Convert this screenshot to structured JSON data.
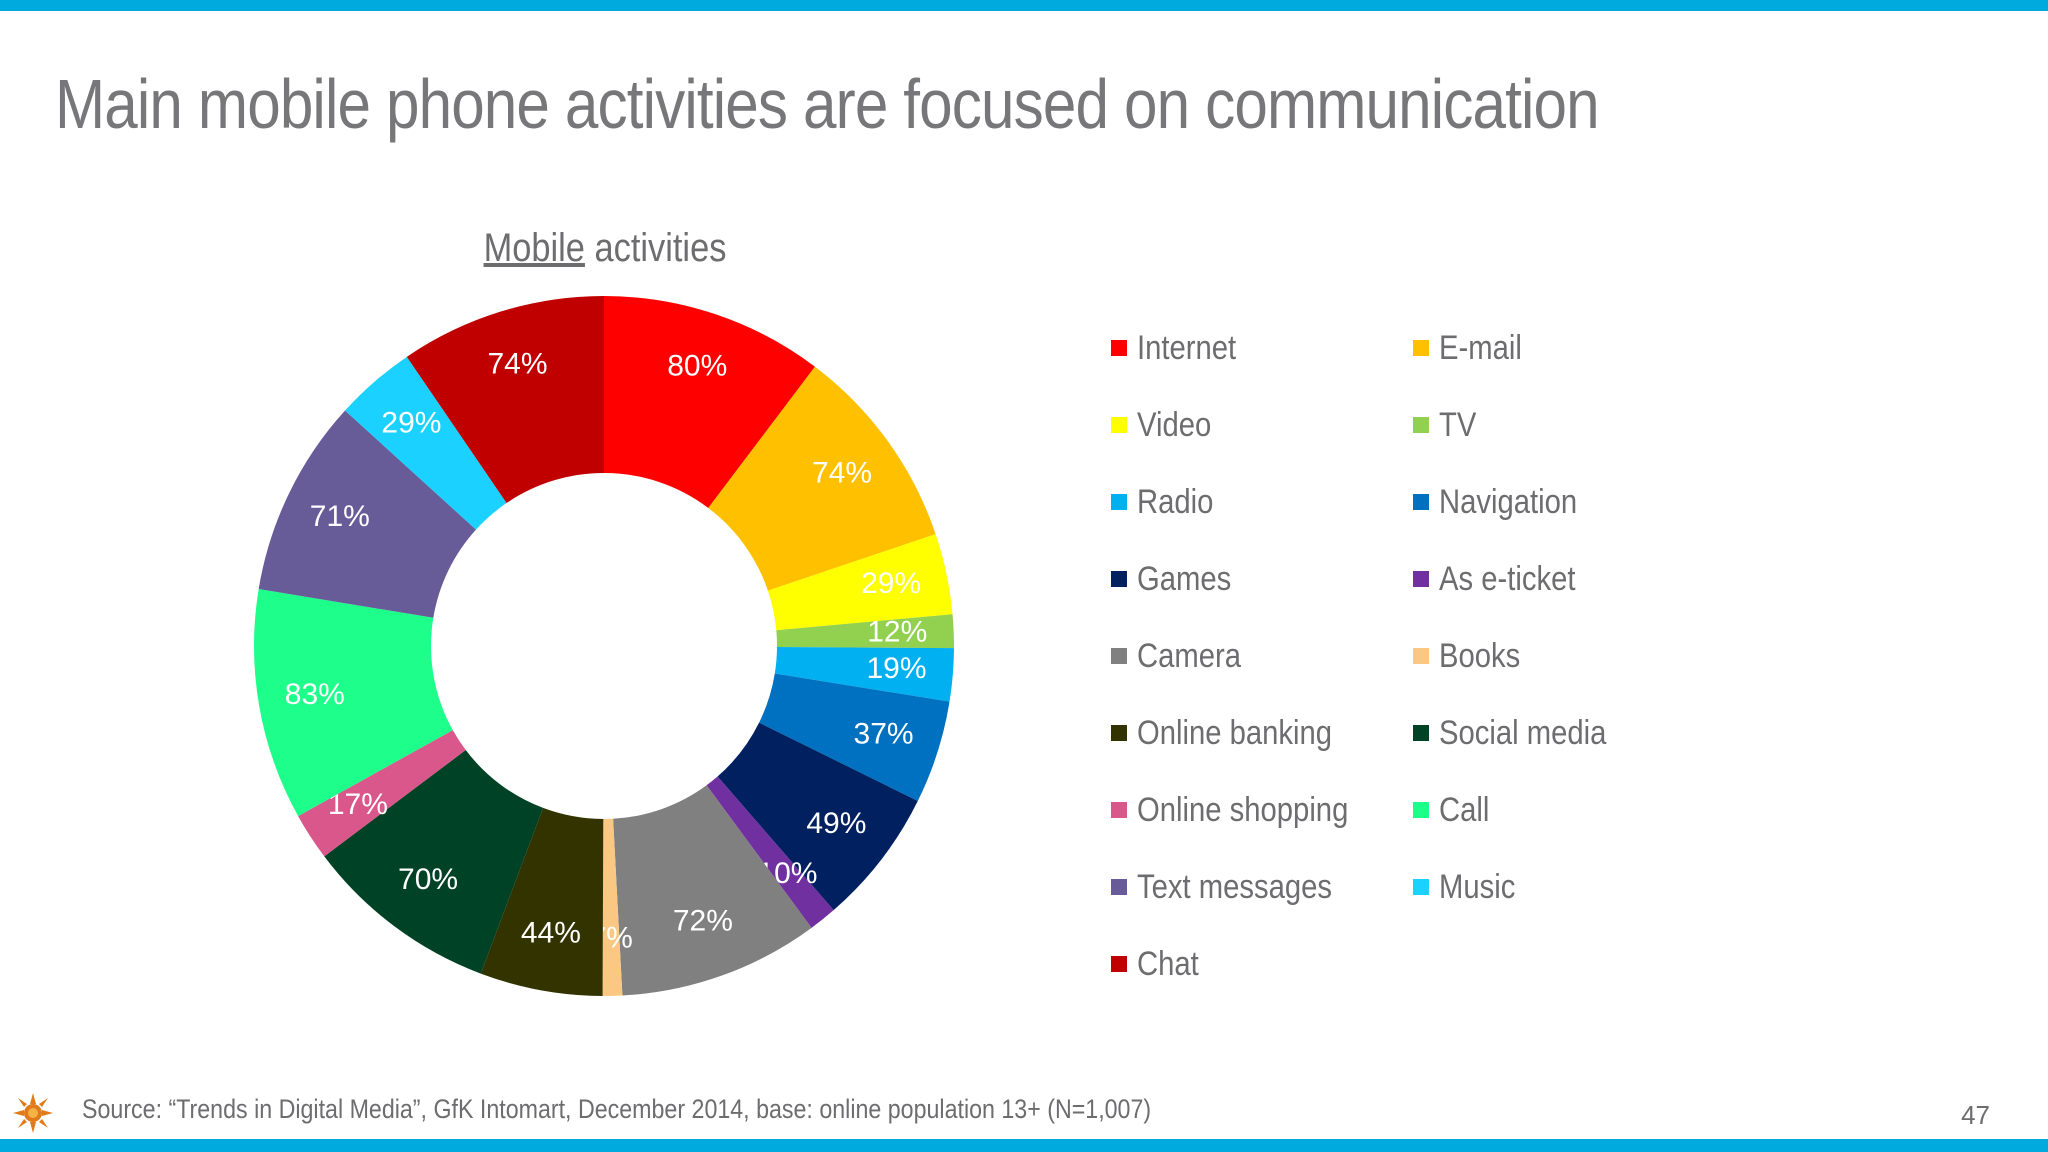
{
  "slide": {
    "title": "Main mobile phone activities are focused on communication",
    "source": "Source: “Trends in Digital Media”, GfK Intomart, December 2014, base: online population 13+ (N=1,007)",
    "page_number": "47"
  },
  "chart_data": {
    "type": "donut",
    "title_underlined": "Mobile",
    "title_rest": " activities",
    "slices": [
      {
        "name": "Internet",
        "value": 80,
        "label": "80%",
        "color": "#ff0000"
      },
      {
        "name": "E-mail",
        "value": 74,
        "label": "74%",
        "color": "#ffc000"
      },
      {
        "name": "Video",
        "value": 29,
        "label": "29%",
        "color": "#ffff00"
      },
      {
        "name": "TV",
        "value": 12,
        "label": "12%",
        "color": "#92d050"
      },
      {
        "name": "Radio",
        "value": 19,
        "label": "19%",
        "color": "#00b0f0"
      },
      {
        "name": "Navigation",
        "value": 37,
        "label": "37%",
        "color": "#0070c0"
      },
      {
        "name": "Games",
        "value": 49,
        "label": "49%",
        "color": "#002060"
      },
      {
        "name": "As e-ticket",
        "value": 10,
        "label": "10%",
        "color": "#7030a0"
      },
      {
        "name": "Camera",
        "value": 72,
        "label": "72%",
        "color": "#808080"
      },
      {
        "name": "Books",
        "value": 7,
        "label": "7%",
        "color": "#fac882"
      },
      {
        "name": "Online banking",
        "value": 44,
        "label": "44%",
        "color": "#333300"
      },
      {
        "name": "Social media",
        "value": 70,
        "label": "70%",
        "color": "#004225"
      },
      {
        "name": "Online shopping",
        "value": 17,
        "label": "17%",
        "color": "#d9578a"
      },
      {
        "name": "Call",
        "value": 83,
        "label": "83%",
        "color": "#1dff8a"
      },
      {
        "name": "Text messages",
        "value": 71,
        "label": "71%",
        "color": "#675c98"
      },
      {
        "name": "Music",
        "value": 29,
        "label": "29%",
        "color": "#1ad1ff"
      },
      {
        "name": "Chat",
        "value": 74,
        "label": "74%",
        "color": "#c00000"
      }
    ],
    "legend_placement": "right"
  }
}
